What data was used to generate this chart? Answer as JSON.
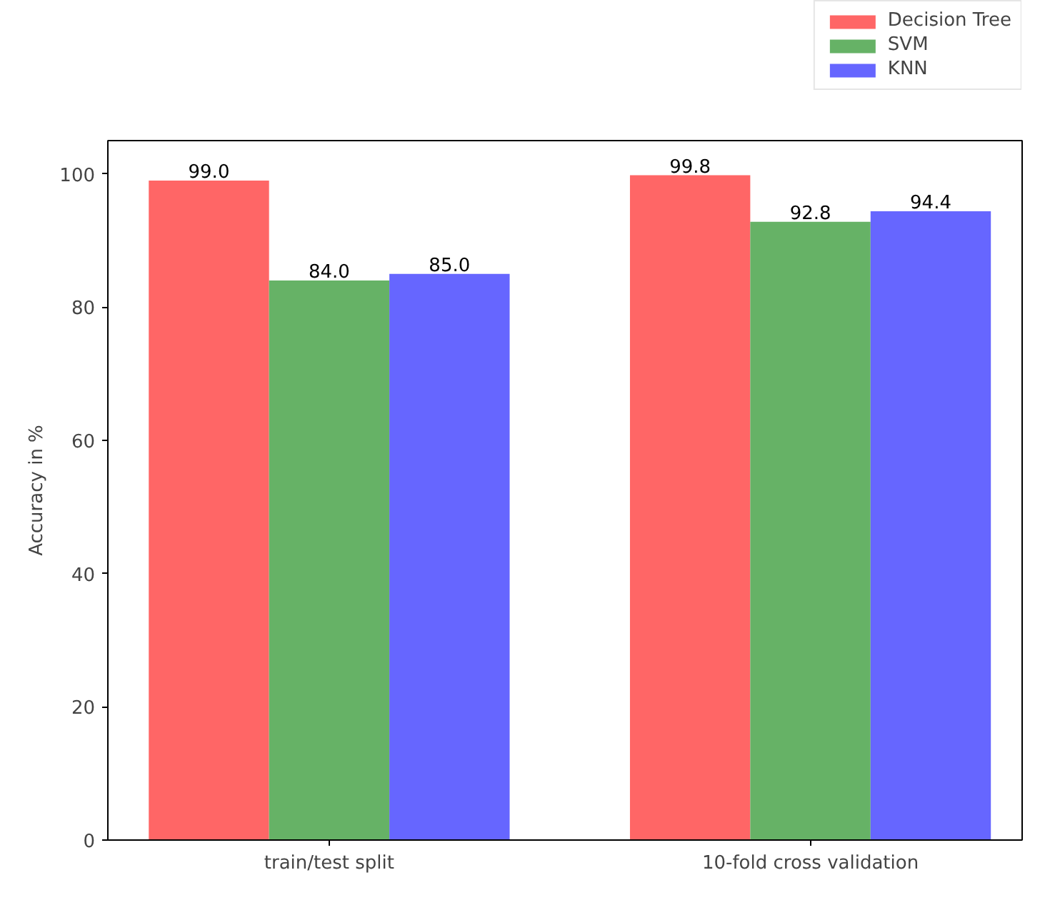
{
  "chart_data": {
    "type": "bar",
    "ylabel": "Accuracy in %",
    "categories": [
      "train/test split",
      "10-fold cross validation"
    ],
    "series": [
      {
        "name": "Decision Tree",
        "color": "#ff6666",
        "values": [
          99.0,
          99.8
        ],
        "value_labels": [
          "99.0",
          "99.8"
        ]
      },
      {
        "name": "SVM",
        "color": "#66b266",
        "values": [
          84.0,
          92.8
        ],
        "value_labels": [
          "84.0",
          "92.8"
        ]
      },
      {
        "name": "KNN",
        "color": "#6666ff",
        "values": [
          85.0,
          94.4
        ],
        "value_labels": [
          "85.0",
          "94.4"
        ]
      }
    ],
    "ylim": [
      0,
      105
    ],
    "yticks": [
      0,
      20,
      40,
      60,
      80,
      100
    ],
    "legend": "top right",
    "grid": false
  }
}
